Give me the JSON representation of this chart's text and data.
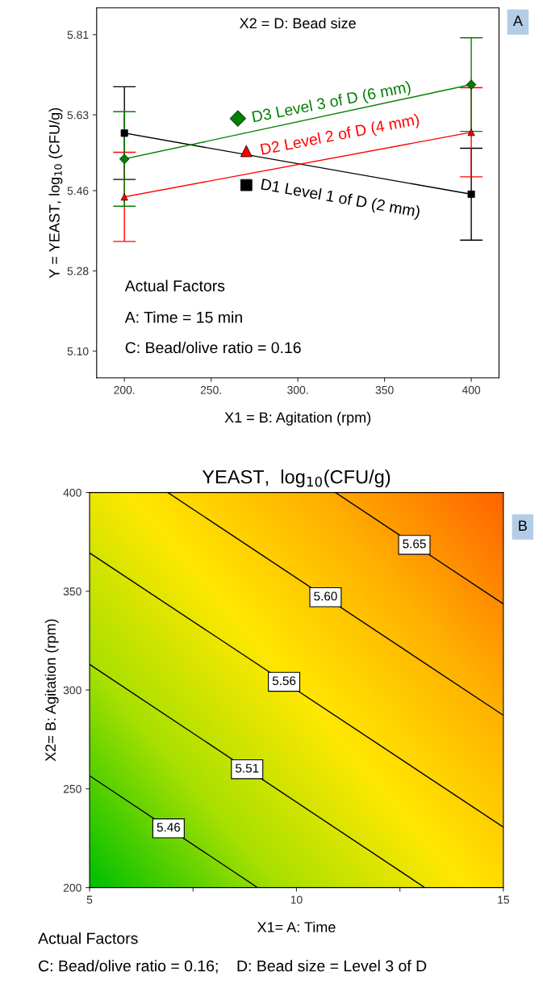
{
  "chart_data": [
    {
      "type": "line",
      "xlabel": "X1 = B: Agitation (rpm)",
      "ylabel": "Y = YEAST, log$_{10}$ (CFU/g)",
      "xlim": [
        184,
        416
      ],
      "ylim": [
        5.04,
        5.87
      ],
      "xticks": [
        {
          "value": 200,
          "label": "200."
        },
        {
          "value": 250,
          "label": "250."
        },
        {
          "value": 300,
          "label": "300."
        },
        350,
        400
      ],
      "yticks": [
        {
          "value": 5.1,
          "label": "5.10"
        },
        5.28,
        5.46,
        5.63,
        5.81
      ],
      "x": [
        200,
        400
      ],
      "series": [
        {
          "name": "D1 Level 1 of D (2 mm)",
          "color": "#000000",
          "marker": "square",
          "values": [
            5.589,
            5.452
          ],
          "errors": [
            0.104,
            0.103
          ]
        },
        {
          "name": "D2 Level 2 of D (4 mm)",
          "color": "#ff0000",
          "marker": "triangle",
          "values": [
            5.446,
            5.591
          ],
          "errors": [
            0.1,
            0.1
          ]
        },
        {
          "name": "D3 Level 3 of D (6 mm)",
          "color": "#008000",
          "marker": "diamond",
          "values": [
            5.531,
            5.698
          ],
          "errors": [
            0.106,
            0.105
          ]
        }
      ],
      "annotations": [
        "X2 = D: Bead size",
        "Actual Factors",
        "A: Time = 15 min",
        "C: Bead/olive ratio = 0.16",
        "A"
      ]
    },
    {
      "type": "line",
      "title": "YEAST,  log$_{10}$(CFU/g)",
      "xlabel": "X1= A: Time",
      "ylabel": "X2= B: Agitation (rpm)",
      "xlim": [
        5,
        15
      ],
      "ylim": [
        200,
        400
      ],
      "xticks": [
        5,
        {
          "value": 7.5,
          "label": null
        },
        10,
        {
          "value": 12.5,
          "label": null
        },
        15
      ],
      "yticks": [
        200,
        250,
        300,
        350,
        400
      ],
      "series": [
        {
          "name": "5.46",
          "color": "#000000",
          "x": [
            5,
            9.06
          ],
          "values": [
            256.6,
            200
          ]
        },
        {
          "name": "5.51",
          "color": "#000000",
          "x": [
            5,
            13.1
          ],
          "values": [
            313,
            200
          ]
        },
        {
          "name": "5.56",
          "color": "#000000",
          "x": [
            5,
            15
          ],
          "values": [
            369.4,
            230.6
          ]
        },
        {
          "name": "5.60",
          "color": "#000000",
          "x": [
            6.89,
            15
          ],
          "values": [
            400,
            287.2
          ]
        },
        {
          "name": "5.65",
          "color": "#000000",
          "x": [
            10.94,
            15
          ],
          "values": [
            400,
            343.6
          ]
        }
      ],
      "annotations": [
        "B",
        "Actual Factors",
        "C: Bead/olive ratio = 0.16;    D: Bead size = Level 3 of D"
      ]
    }
  ]
}
